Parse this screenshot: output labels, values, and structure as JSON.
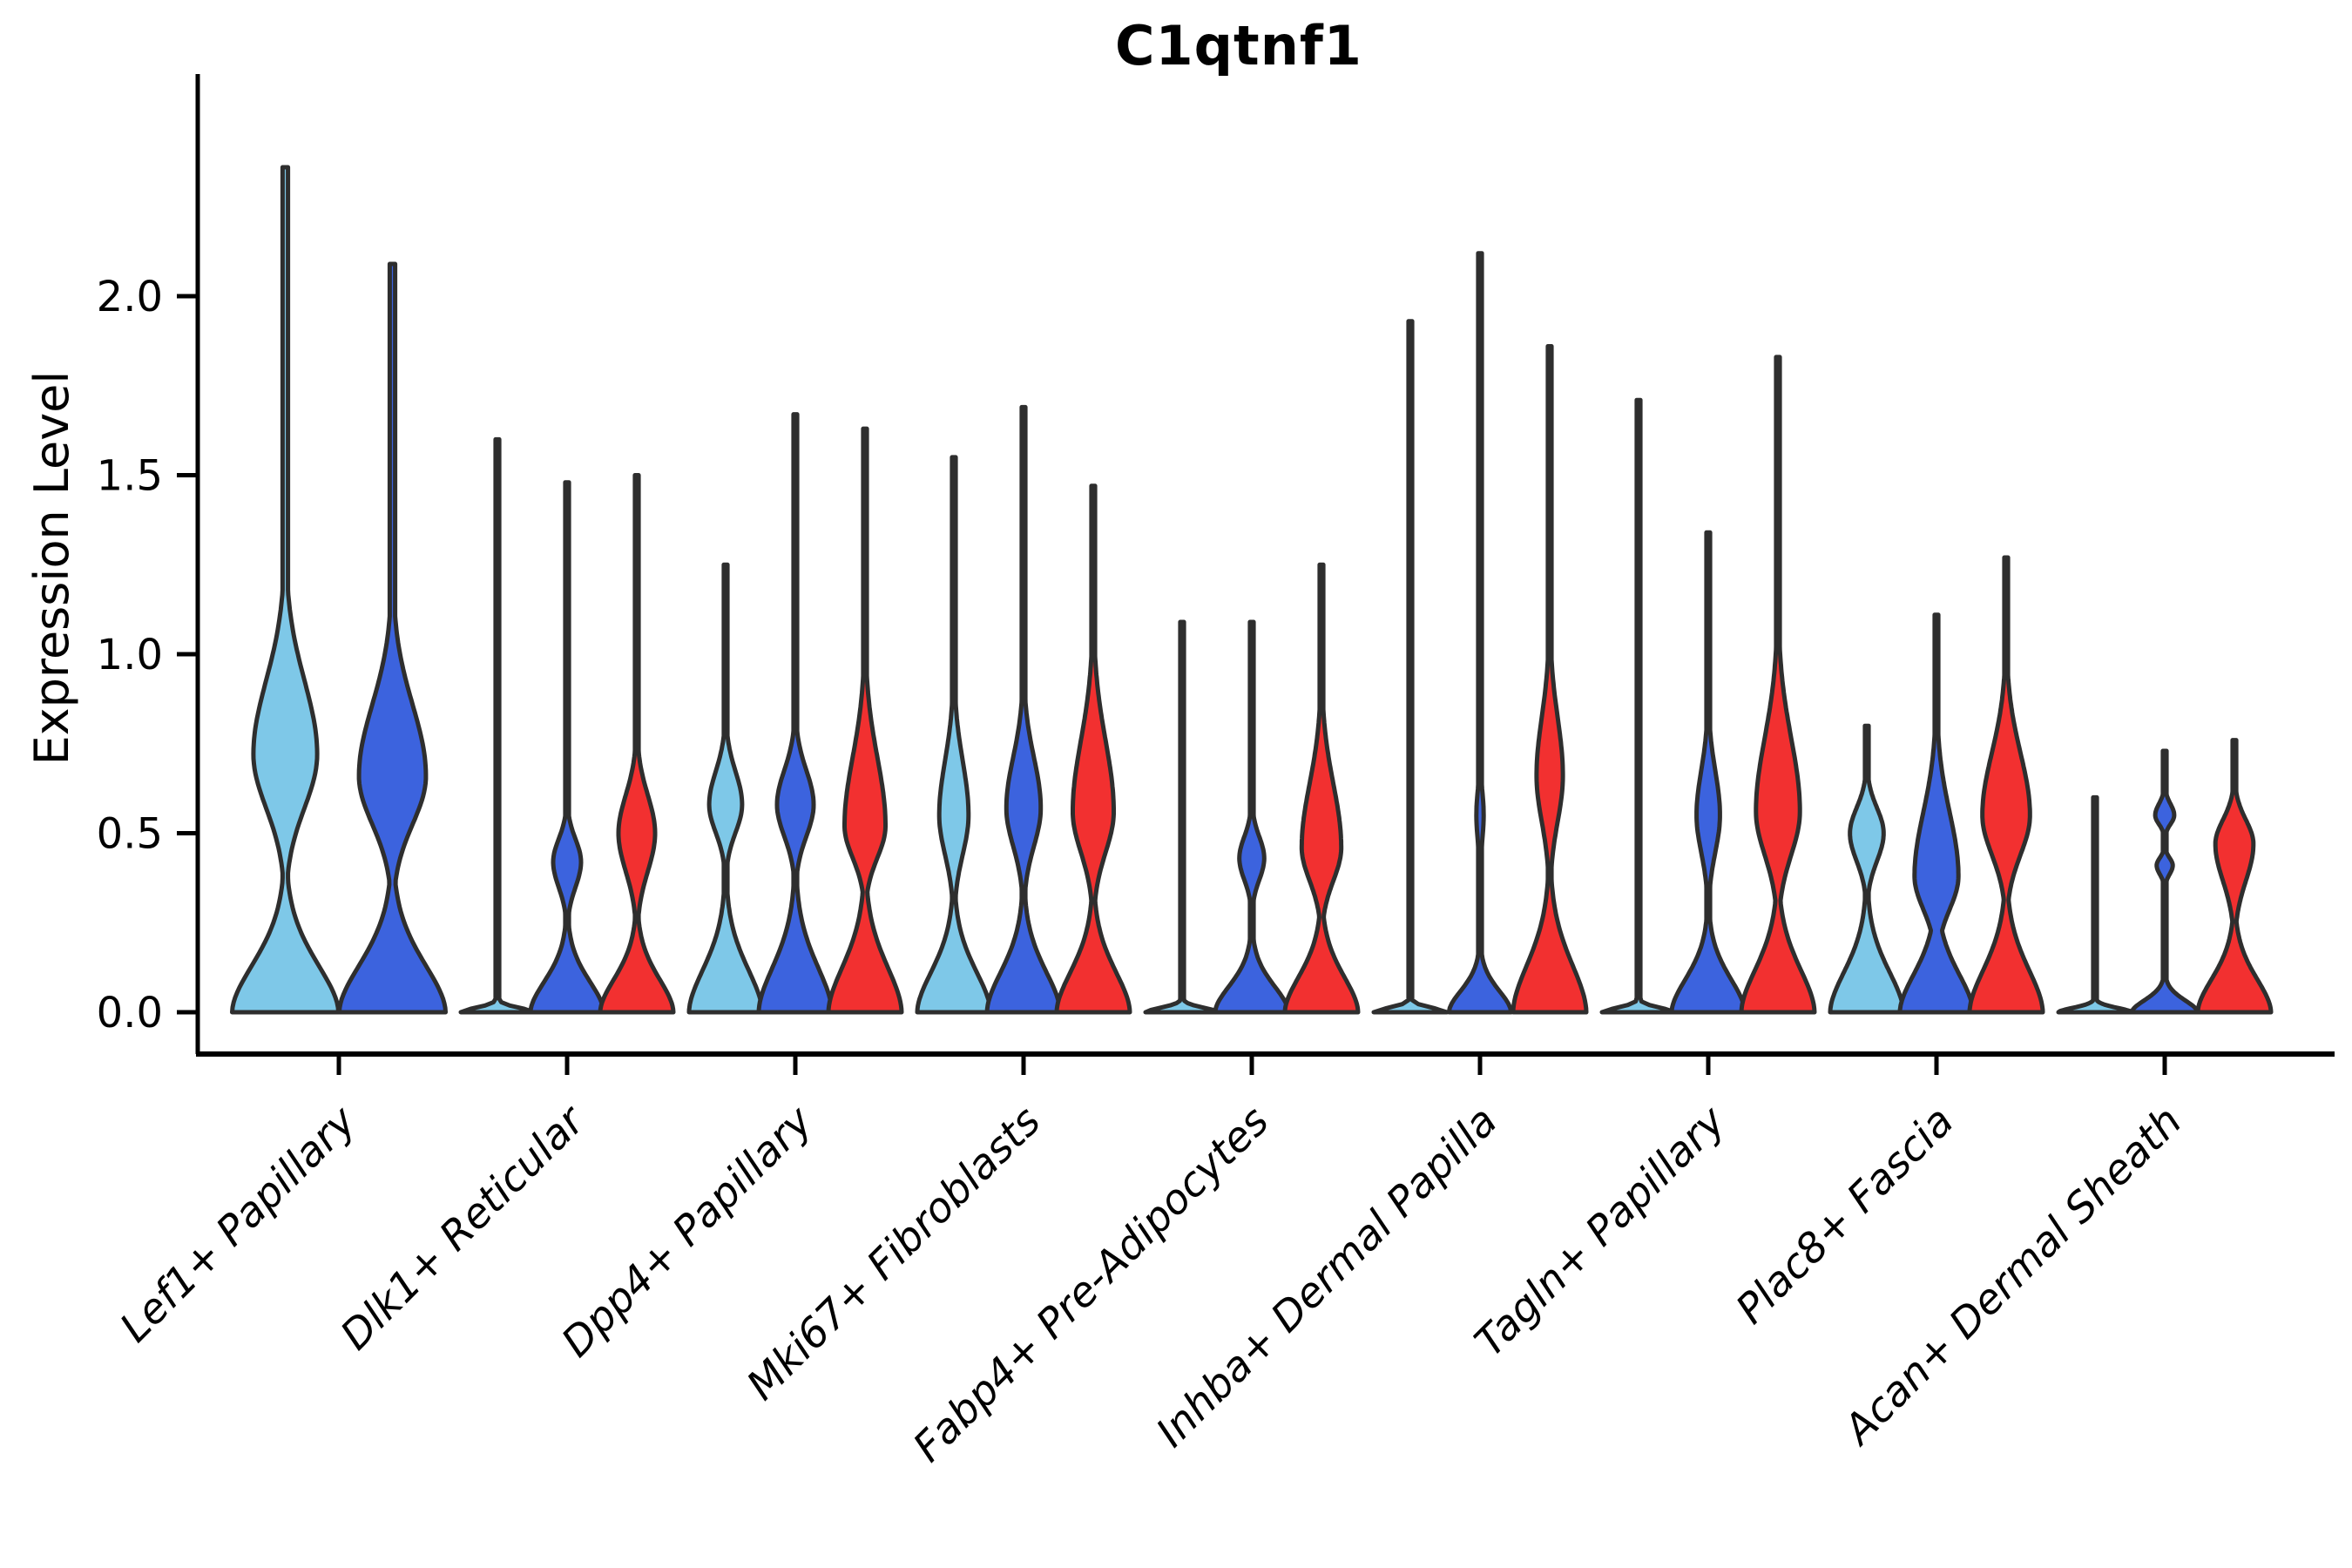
{
  "title": "C1qtnf1",
  "y_axis": {
    "label": "Expression Level",
    "tick_labels": [
      "0.0",
      "0.5",
      "1.0",
      "1.5",
      "2.0"
    ],
    "tick_values": [
      0,
      0.5,
      1.0,
      1.5,
      2.0
    ]
  },
  "x_axis": {
    "categories": [
      "Lef1+ Papillary",
      "Dlk1+ Reticular",
      "Dpp4+ Papillary",
      "Mki67+ Fibroblasts",
      "Fabp4+ Pre-Adipocytes",
      "Inhba+ Dermal Papilla",
      "Tagln+ Papillary",
      "Plac8+ Fascia",
      "Acan+ Dermal Sheath"
    ]
  },
  "colors": {
    "light_blue": "#7EC8E8",
    "dark_blue": "#3C63DE",
    "red": "#F23030",
    "outline": "#2E2E2E",
    "axis": "#000000",
    "background": "#FFFFFF"
  },
  "chart_data": {
    "type": "violin",
    "title": "C1qtnf1",
    "xlabel": "",
    "ylabel": "Expression Level",
    "ylim": [
      -0.12,
      2.62
    ],
    "grid": false,
    "legend": null,
    "categories": [
      "Lef1+ Papillary",
      "Dlk1+ Reticular",
      "Dpp4+ Papillary",
      "Mki67+ Fibroblasts",
      "Fabp4+ Pre-Adipocytes",
      "Inhba+ Dermal Papilla",
      "Tagln+ Papillary",
      "Plac8+ Fascia",
      "Acan+ Dermal Sheath"
    ],
    "series_names": [
      "light_blue",
      "dark_blue",
      "red"
    ],
    "max_expression": {
      "light_blue": [
        2.36,
        1.6,
        1.25,
        1.55,
        1.09,
        1.93,
        1.71,
        0.8,
        0.6
      ],
      "dark_blue": [
        2.09,
        1.48,
        1.67,
        1.69,
        1.09,
        2.12,
        1.34,
        1.11,
        0.73
      ],
      "red": [
        null,
        1.5,
        1.63,
        1.47,
        1.25,
        1.86,
        1.83,
        1.27,
        0.76
      ]
    },
    "groups": [
      {
        "category": "Lef1+ Papillary",
        "violins": [
          {
            "series": "light_blue",
            "max": 2.36,
            "line_only": false,
            "bulges": [
              {
                "peak": 0.72,
                "top": 1.3,
                "bottom": 0.3,
                "w": 0.6
              }
            ],
            "base": {
              "h": 0.2,
              "w": 1.0
            }
          },
          {
            "series": "dark_blue",
            "max": 2.09,
            "line_only": false,
            "bulges": [
              {
                "peak": 0.66,
                "top": 1.22,
                "bottom": 0.28,
                "w": 0.63
              }
            ],
            "base": {
              "h": 0.2,
              "w": 1.0
            }
          }
        ]
      },
      {
        "category": "Dlk1+ Reticular",
        "violins": [
          {
            "series": "light_blue",
            "max": 1.6,
            "line_only": true,
            "bulges": [],
            "base": {
              "h": 0.018,
              "w": 1.0
            }
          },
          {
            "series": "dark_blue",
            "max": 1.48,
            "line_only": false,
            "bulges": [
              {
                "peak": 0.42,
                "top": 0.6,
                "bottom": 0.22,
                "w": 0.38
              }
            ],
            "base": {
              "h": 0.13,
              "w": 1.0
            }
          },
          {
            "series": "red",
            "max": 1.5,
            "line_only": false,
            "bulges": [
              {
                "peak": 0.5,
                "top": 0.8,
                "bottom": 0.2,
                "w": 0.5
              }
            ],
            "base": {
              "h": 0.14,
              "w": 1.0
            }
          }
        ]
      },
      {
        "category": "Dpp4+ Papillary",
        "violins": [
          {
            "series": "light_blue",
            "max": 1.25,
            "line_only": false,
            "bulges": [
              {
                "peak": 0.58,
                "top": 0.84,
                "bottom": 0.36,
                "w": 0.45
              }
            ],
            "base": {
              "h": 0.18,
              "w": 1.0
            }
          },
          {
            "series": "dark_blue",
            "max": 1.67,
            "line_only": false,
            "bulges": [
              {
                "peak": 0.58,
                "top": 0.85,
                "bottom": 0.33,
                "w": 0.5
              }
            ],
            "base": {
              "h": 0.19,
              "w": 1.0
            }
          },
          {
            "series": "red",
            "max": 1.63,
            "line_only": false,
            "bulges": [
              {
                "peak": 0.52,
                "top": 1.06,
                "bottom": 0.27,
                "w": 0.56
              }
            ],
            "base": {
              "h": 0.19,
              "w": 1.0
            }
          }
        ]
      },
      {
        "category": "Mki67+ Fibroblasts",
        "violins": [
          {
            "series": "light_blue",
            "max": 1.55,
            "line_only": false,
            "bulges": [
              {
                "peak": 0.55,
                "top": 0.98,
                "bottom": 0.24,
                "w": 0.4
              }
            ],
            "base": {
              "h": 0.17,
              "w": 1.0
            }
          },
          {
            "series": "dark_blue",
            "max": 1.69,
            "line_only": false,
            "bulges": [
              {
                "peak": 0.57,
                "top": 0.97,
                "bottom": 0.27,
                "w": 0.47
              }
            ],
            "base": {
              "h": 0.17,
              "w": 1.0
            }
          },
          {
            "series": "red",
            "max": 1.47,
            "line_only": false,
            "bulges": [
              {
                "peak": 0.56,
                "top": 1.12,
                "bottom": 0.24,
                "w": 0.56
              }
            ],
            "base": {
              "h": 0.17,
              "w": 1.0
            }
          }
        ]
      },
      {
        "category": "Fabp4+ Pre-Adipocytes",
        "violins": [
          {
            "series": "light_blue",
            "max": 1.09,
            "line_only": true,
            "bulges": [],
            "base": {
              "h": 0.018,
              "w": 1.0
            }
          },
          {
            "series": "dark_blue",
            "max": 1.09,
            "line_only": false,
            "bulges": [
              {
                "peak": 0.43,
                "top": 0.6,
                "bottom": 0.26,
                "w": 0.34
              }
            ],
            "base": {
              "h": 0.11,
              "w": 1.0
            }
          },
          {
            "series": "red",
            "max": 1.25,
            "line_only": false,
            "bulges": [
              {
                "peak": 0.46,
                "top": 0.96,
                "bottom": 0.2,
                "w": 0.54
              }
            ],
            "base": {
              "h": 0.15,
              "w": 1.0
            }
          }
        ]
      },
      {
        "category": "Inhba+ Dermal Papilla",
        "violins": [
          {
            "series": "light_blue",
            "max": 1.93,
            "line_only": true,
            "bulges": [],
            "base": {
              "h": 0.018,
              "w": 1.0
            }
          },
          {
            "series": "dark_blue",
            "max": 2.12,
            "line_only": false,
            "bulges": [
              {
                "peak": 0.55,
                "top": 0.75,
                "bottom": 0.35,
                "w": 0.1
              }
            ],
            "base": {
              "h": 0.09,
              "w": 0.85
            }
          },
          {
            "series": "red",
            "max": 1.86,
            "line_only": false,
            "bulges": [
              {
                "peak": 0.66,
                "top": 1.12,
                "bottom": 0.3,
                "w": 0.36
              }
            ],
            "base": {
              "h": 0.2,
              "w": 1.0
            }
          }
        ]
      },
      {
        "category": "Tagln+ Papillary",
        "violins": [
          {
            "series": "light_blue",
            "max": 1.71,
            "line_only": true,
            "bulges": [],
            "base": {
              "h": 0.018,
              "w": 1.0
            }
          },
          {
            "series": "dark_blue",
            "max": 1.34,
            "line_only": false,
            "bulges": [
              {
                "peak": 0.55,
                "top": 0.9,
                "bottom": 0.26,
                "w": 0.32
              }
            ],
            "base": {
              "h": 0.14,
              "w": 1.0
            }
          },
          {
            "series": "red",
            "max": 1.83,
            "line_only": false,
            "bulges": [
              {
                "peak": 0.56,
                "top": 1.14,
                "bottom": 0.22,
                "w": 0.6
              }
            ],
            "base": {
              "h": 0.18,
              "w": 1.0
            }
          }
        ]
      },
      {
        "category": "Plac8+ Fascia",
        "violins": [
          {
            "series": "light_blue",
            "max": 0.8,
            "line_only": false,
            "bulges": [
              {
                "peak": 0.5,
                "top": 0.7,
                "bottom": 0.28,
                "w": 0.46
              }
            ],
            "base": {
              "h": 0.17,
              "w": 1.0
            }
          },
          {
            "series": "dark_blue",
            "max": 1.11,
            "line_only": false,
            "bulges": [
              {
                "peak": 0.38,
                "top": 0.88,
                "bottom": 0.12,
                "w": 0.6
              }
            ],
            "base": {
              "h": 0.16,
              "w": 1.0
            }
          },
          {
            "series": "red",
            "max": 1.27,
            "line_only": false,
            "bulges": [
              {
                "peak": 0.55,
                "top": 1.04,
                "bottom": 0.24,
                "w": 0.65
              }
            ],
            "base": {
              "h": 0.18,
              "w": 1.0
            }
          }
        ]
      },
      {
        "category": "Acan+ Dermal Sheath",
        "violins": [
          {
            "series": "light_blue",
            "max": 0.6,
            "line_only": true,
            "bulges": [],
            "base": {
              "h": 0.018,
              "w": 1.0
            }
          },
          {
            "series": "dark_blue",
            "max": 0.73,
            "line_only": false,
            "bulges": [
              {
                "peak": 0.55,
                "top": 0.64,
                "bottom": 0.48,
                "w": 0.26
              },
              {
                "peak": 0.41,
                "top": 0.47,
                "bottom": 0.34,
                "w": 0.22
              }
            ],
            "base": {
              "h": 0.05,
              "w": 0.9
            }
          },
          {
            "series": "red",
            "max": 0.76,
            "line_only": false,
            "bulges": [
              {
                "peak": 0.47,
                "top": 0.66,
                "bottom": 0.18,
                "w": 0.52
              }
            ],
            "base": {
              "h": 0.14,
              "w": 1.0
            }
          }
        ]
      }
    ]
  }
}
